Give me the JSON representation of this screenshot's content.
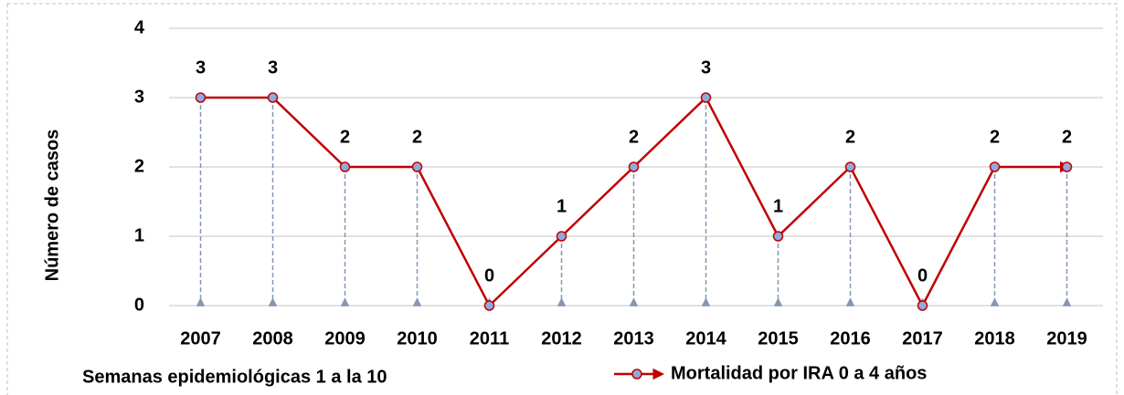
{
  "chart_data": {
    "type": "line",
    "y_label": "Número de casos",
    "note": "Semanas epidemiológicas 1 a la 10",
    "categories": [
      "2007",
      "2008",
      "2009",
      "2010",
      "2011",
      "2012",
      "2013",
      "2014",
      "2015",
      "2016",
      "2017",
      "2018",
      "2019"
    ],
    "series": [
      {
        "name": "Mortalidad por IRA 0 a 4 años",
        "color": "#c00000",
        "marker_color": "#8faadc",
        "values": [
          3,
          3,
          2,
          2,
          0,
          1,
          2,
          3,
          1,
          2,
          0,
          2,
          2
        ]
      }
    ],
    "ylim": [
      0,
      4
    ],
    "yticks": [
      0,
      1,
      2,
      3,
      4
    ],
    "grid": true,
    "legend": "bottom"
  }
}
